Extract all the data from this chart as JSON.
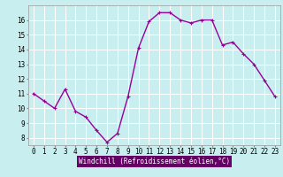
{
  "x": [
    0,
    1,
    2,
    3,
    4,
    5,
    6,
    7,
    8,
    9,
    10,
    11,
    12,
    13,
    14,
    15,
    16,
    17,
    18,
    19,
    20,
    21,
    22,
    23
  ],
  "y": [
    11.0,
    10.5,
    10.0,
    11.3,
    9.8,
    9.4,
    8.5,
    7.7,
    8.3,
    10.8,
    14.1,
    15.9,
    16.5,
    16.5,
    16.0,
    15.8,
    16.0,
    16.0,
    14.3,
    14.5,
    13.7,
    13.0,
    11.9,
    10.8
  ],
  "bg_color": "#c8eef0",
  "grid_color": "#ffffff",
  "line_color": "#990099",
  "marker_color": "#990099",
  "xlabel": "Windchill (Refroidissement éolien,°C)",
  "ylabel_ticks": [
    8,
    9,
    10,
    11,
    12,
    13,
    14,
    15,
    16
  ],
  "xlim": [
    -0.5,
    23.5
  ],
  "ylim": [
    7.5,
    17.0
  ],
  "xlabel_fontsize": 5.5,
  "tick_fontsize": 5.5,
  "marker_size": 2.5,
  "line_width": 1.0,
  "xlabel_bg": "#660066",
  "xlabel_fg": "#ffffff"
}
